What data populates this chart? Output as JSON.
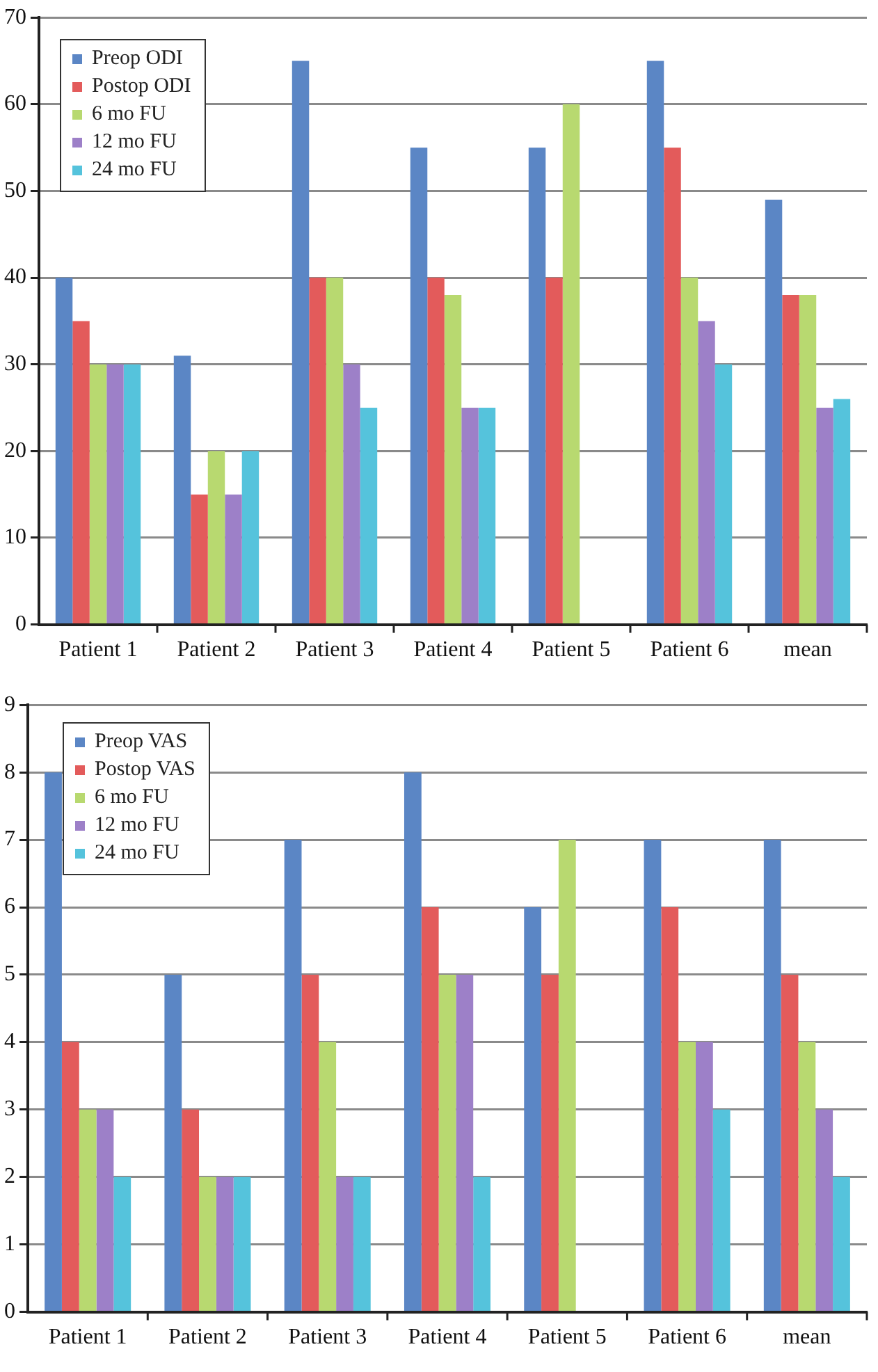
{
  "chart_data": [
    {
      "type": "bar",
      "categories": [
        "Patient 1",
        "Patient 2",
        "Patient 3",
        "Patient 4",
        "Patient 5",
        "Patient 6",
        "mean"
      ],
      "series": [
        {
          "name": "Preop ODI",
          "color": "#5b86c5",
          "values": [
            40,
            31,
            65,
            55,
            55,
            65,
            49
          ]
        },
        {
          "name": "Postop ODI",
          "color": "#e35b5b",
          "values": [
            35,
            15,
            40,
            40,
            40,
            55,
            38
          ]
        },
        {
          "name": "6 mo FU",
          "color": "#b8d970",
          "values": [
            30,
            20,
            40,
            38,
            60,
            40,
            38
          ]
        },
        {
          "name": "12 mo FU",
          "color": "#9d80c8",
          "values": [
            30,
            15,
            30,
            25,
            null,
            35,
            25
          ]
        },
        {
          "name": "24 mo FU",
          "color": "#55c3dc",
          "values": [
            30,
            20,
            25,
            25,
            null,
            30,
            26
          ]
        }
      ],
      "ylim": [
        0,
        70
      ],
      "yticks": [
        0,
        10,
        20,
        30,
        40,
        50,
        60,
        70
      ],
      "grid": "y",
      "legend": "top left"
    },
    {
      "type": "bar",
      "categories": [
        "Patient 1",
        "Patient 2",
        "Patient 3",
        "Patient 4",
        "Patient 5",
        "Patient 6",
        "mean"
      ],
      "series": [
        {
          "name": "Preop VAS",
          "color": "#5b86c5",
          "values": [
            8,
            5,
            7,
            8,
            6,
            7,
            7
          ]
        },
        {
          "name": "Postop VAS",
          "color": "#e35b5b",
          "values": [
            4,
            3,
            5,
            6,
            5,
            6,
            5
          ]
        },
        {
          "name": "6 mo FU",
          "color": "#b8d970",
          "values": [
            3,
            2,
            4,
            5,
            7,
            4,
            4
          ]
        },
        {
          "name": "12 mo FU",
          "color": "#9d80c8",
          "values": [
            3,
            2,
            2,
            5,
            null,
            4,
            3
          ]
        },
        {
          "name": "24 mo FU",
          "color": "#55c3dc",
          "values": [
            2,
            2,
            2,
            2,
            null,
            3,
            2
          ]
        }
      ],
      "ylim": [
        0,
        9
      ],
      "yticks": [
        0,
        1,
        2,
        3,
        4,
        5,
        6,
        7,
        8,
        9
      ],
      "grid": "y",
      "legend": "top left"
    }
  ]
}
